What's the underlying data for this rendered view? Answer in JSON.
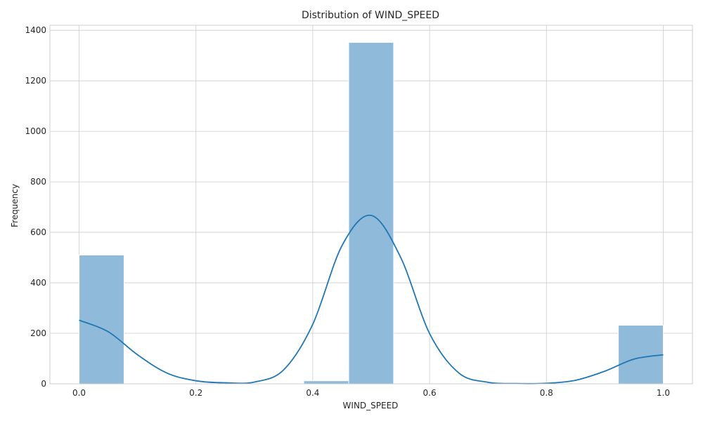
{
  "chart_data": {
    "type": "bar",
    "title": "Distribution of WIND_SPEED",
    "xlabel": "WIND_SPEED",
    "ylabel": "Frequency",
    "xlim": [
      -0.05,
      1.05
    ],
    "ylim": [
      0,
      1420
    ],
    "xticks": [
      0.0,
      0.2,
      0.4,
      0.6,
      0.8,
      1.0
    ],
    "xtick_labels": [
      "0.0",
      "0.2",
      "0.4",
      "0.6",
      "0.8",
      "1.0"
    ],
    "yticks": [
      0,
      200,
      400,
      600,
      800,
      1000,
      1200,
      1400
    ],
    "ytick_labels": [
      "0",
      "200",
      "400",
      "600",
      "800",
      "1000",
      "1200",
      "1400"
    ],
    "bin_width": 0.0769,
    "bins": [
      {
        "x": 0.0,
        "count": 510
      },
      {
        "x": 0.3846,
        "count": 12
      },
      {
        "x": 0.4615,
        "count": 1352
      },
      {
        "x": 0.9231,
        "count": 232
      }
    ],
    "kde": {
      "x": [
        0.0,
        0.05,
        0.1,
        0.15,
        0.2,
        0.25,
        0.3,
        0.35,
        0.4,
        0.45,
        0.5,
        0.55,
        0.6,
        0.65,
        0.7,
        0.75,
        0.8,
        0.85,
        0.9,
        0.95,
        1.0
      ],
      "y": [
        252,
        206,
        115,
        43,
        12,
        4,
        7,
        55,
        236,
        547,
        667,
        503,
        199,
        43,
        6,
        1,
        2,
        14,
        50,
        98,
        115
      ]
    },
    "grid": true,
    "colors": {
      "bar": "#8fbad9",
      "bar_edge": "#ffffff",
      "kde": "#1f77b4",
      "grid": "#cccccc",
      "axes": "#cccccc",
      "text": "#262626"
    }
  }
}
